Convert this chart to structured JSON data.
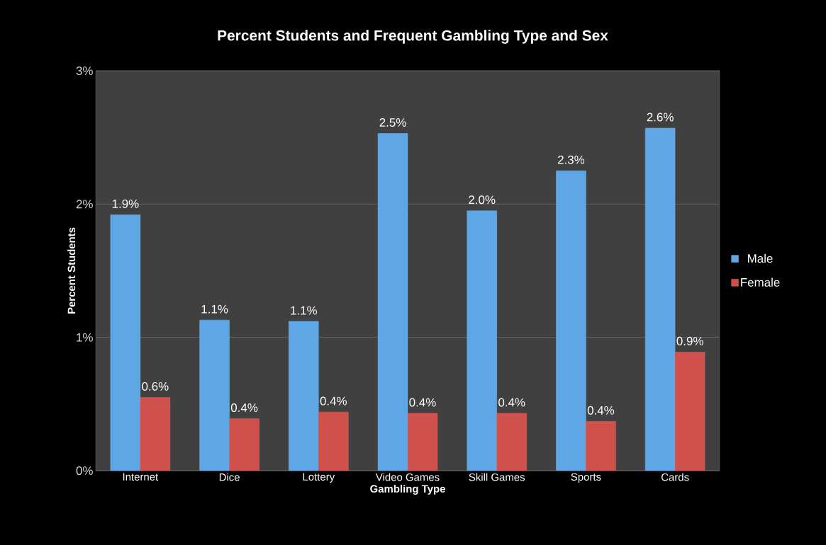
{
  "chart_data": {
    "type": "bar",
    "title": "Percent Students and Frequent Gambling Type and Sex",
    "xlabel": "Gambling Type",
    "ylabel": "Percent Students",
    "categories": [
      "Internet",
      "Dice",
      "Lottery",
      "Video Games",
      "Skill Games",
      "Sports",
      "Cards"
    ],
    "series": [
      {
        "name": "Male",
        "color": "#5ea6e6",
        "values": [
          1.92,
          1.13,
          1.12,
          2.53,
          1.95,
          2.25,
          2.57
        ],
        "value_labels": [
          "1.9%",
          "1.1%",
          "1.1%",
          "2.5%",
          "2.0%",
          "2.3%",
          "2.6%"
        ]
      },
      {
        "name": "Female",
        "color": "#d0504c",
        "values": [
          0.55,
          0.39,
          0.44,
          0.43,
          0.43,
          0.37,
          0.89
        ],
        "value_labels": [
          "0.6%",
          "0.4%",
          "0.4%",
          "0.4%",
          "0.4%",
          "0.4%",
          "0.9%"
        ]
      }
    ],
    "ylim": [
      0,
      3
    ],
    "yticks": [
      {
        "value": 0,
        "label": "0%"
      },
      {
        "value": 1,
        "label": "1%"
      },
      {
        "value": 2,
        "label": "2%"
      },
      {
        "value": 3,
        "label": "3%"
      }
    ],
    "grid": "y",
    "legend": "right"
  }
}
